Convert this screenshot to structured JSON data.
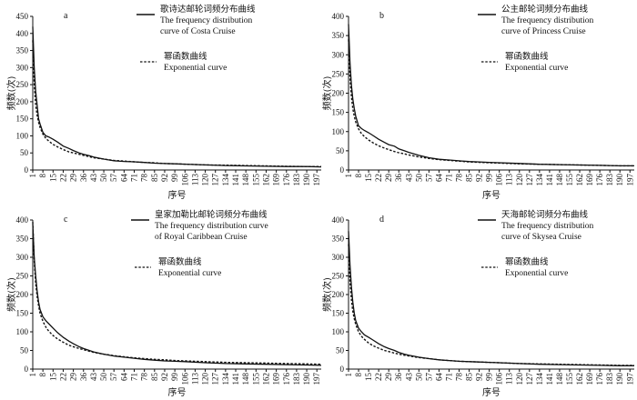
{
  "chart_data": [
    {
      "type": "line",
      "panel": "a",
      "xlabel": "序号",
      "ylabel": "频数(次)",
      "ylim": [
        0,
        450
      ],
      "yticks": [
        0,
        50,
        100,
        150,
        200,
        250,
        300,
        350,
        400,
        450
      ],
      "xticks": [
        1,
        8,
        15,
        22,
        29,
        36,
        43,
        50,
        57,
        64,
        71,
        78,
        85,
        92,
        99,
        106,
        113,
        120,
        127,
        134,
        141,
        148,
        155,
        162,
        169,
        176,
        183,
        190,
        197
      ],
      "xlim": [
        1,
        200
      ],
      "legend_position": "top-right",
      "series": [
        {
          "name": "歌诗达邮轮词频分布曲线 The frequency distribution curve of Costa Cruise",
          "style": "solid",
          "x": [
            1,
            2,
            3,
            4,
            5,
            6,
            8,
            10,
            12,
            15,
            18,
            22,
            26,
            29,
            33,
            36,
            40,
            43,
            50,
            57,
            64,
            71,
            78,
            85,
            92,
            99,
            106,
            120,
            134,
            148,
            162,
            176,
            190,
            200
          ],
          "y": [
            420,
            300,
            230,
            190,
            150,
            135,
            110,
            100,
            97,
            90,
            82,
            70,
            63,
            57,
            50,
            46,
            42,
            38,
            32,
            27,
            25,
            24,
            22,
            20,
            19,
            18,
            17,
            15,
            13,
            12,
            11,
            10,
            10,
            9
          ]
        },
        {
          "name": "幂函数曲线 Exponential curve",
          "style": "dashed",
          "x": [
            1,
            2,
            3,
            4,
            5,
            6,
            8,
            10,
            12,
            15,
            18,
            22,
            26,
            29,
            33,
            36,
            40,
            43,
            50,
            57,
            64,
            71,
            78,
            85,
            92,
            99,
            106,
            120,
            134,
            148,
            162,
            176,
            190,
            200
          ],
          "y": [
            380,
            250,
            190,
            160,
            140,
            125,
            105,
            93,
            85,
            75,
            68,
            60,
            53,
            50,
            46,
            43,
            39,
            36,
            32,
            28,
            26,
            24,
            22,
            21,
            19,
            18,
            17,
            15,
            14,
            13,
            12,
            11,
            10,
            10
          ]
        }
      ]
    },
    {
      "type": "line",
      "panel": "b",
      "xlabel": "序号",
      "ylabel": "频数(次)",
      "ylim": [
        0,
        400
      ],
      "yticks": [
        0,
        50,
        100,
        150,
        200,
        250,
        300,
        350,
        400
      ],
      "xticks": [
        1,
        8,
        15,
        22,
        29,
        36,
        43,
        50,
        57,
        64,
        71,
        78,
        85,
        92,
        99,
        106,
        113,
        120,
        127,
        134,
        141,
        148,
        155,
        162,
        169,
        176,
        183,
        190,
        197
      ],
      "xlim": [
        1,
        200
      ],
      "legend_position": "top-right",
      "series": [
        {
          "name": "公主邮轮词频分布曲线 The frequency distribution curve of Princess Cruise",
          "style": "solid",
          "x": [
            1,
            2,
            3,
            4,
            5,
            6,
            8,
            10,
            12,
            15,
            18,
            22,
            26,
            29,
            33,
            36,
            40,
            43,
            50,
            57,
            64,
            71,
            78,
            85,
            92,
            99,
            106,
            120,
            134,
            148,
            162,
            176,
            190,
            200
          ],
          "y": [
            380,
            280,
            220,
            185,
            160,
            140,
            115,
            108,
            103,
            97,
            90,
            80,
            72,
            66,
            62,
            55,
            50,
            46,
            38,
            32,
            28,
            26,
            24,
            22,
            21,
            20,
            19,
            17,
            15,
            14,
            13,
            12,
            11,
            11
          ]
        },
        {
          "name": "幂函数曲线 Exponential curve",
          "style": "dashed",
          "x": [
            1,
            2,
            3,
            4,
            5,
            6,
            8,
            10,
            12,
            15,
            18,
            22,
            26,
            29,
            33,
            36,
            40,
            43,
            50,
            57,
            64,
            71,
            78,
            85,
            92,
            99,
            106,
            120,
            134,
            148,
            162,
            176,
            190,
            200
          ],
          "y": [
            340,
            240,
            190,
            160,
            140,
            125,
            107,
            95,
            87,
            78,
            71,
            63,
            57,
            53,
            48,
            45,
            42,
            39,
            34,
            30,
            27,
            25,
            23,
            21,
            20,
            19,
            18,
            16,
            15,
            14,
            13,
            12,
            11,
            11
          ]
        }
      ]
    },
    {
      "type": "line",
      "panel": "c",
      "xlabel": "序号",
      "ylabel": "频数(次)",
      "ylim": [
        0,
        400
      ],
      "yticks": [
        0,
        50,
        100,
        150,
        200,
        250,
        300,
        350,
        400
      ],
      "xticks": [
        1,
        8,
        15,
        22,
        29,
        36,
        43,
        50,
        57,
        64,
        71,
        78,
        85,
        92,
        99,
        106,
        113,
        120,
        127,
        134,
        141,
        148,
        155,
        162,
        169,
        176,
        183,
        190,
        197
      ],
      "xlim": [
        1,
        200
      ],
      "legend_position": "top-right",
      "series": [
        {
          "name": "皇家加勒比邮轮词频分布曲线 The frequency distribution curve of Royal Caribbean Cruise",
          "style": "solid",
          "x": [
            1,
            2,
            3,
            4,
            5,
            6,
            8,
            10,
            12,
            15,
            18,
            22,
            26,
            29,
            33,
            36,
            40,
            43,
            50,
            57,
            64,
            71,
            78,
            85,
            92,
            99,
            106,
            120,
            134,
            148,
            162,
            176,
            190,
            200
          ],
          "y": [
            390,
            300,
            250,
            210,
            180,
            160,
            140,
            130,
            122,
            110,
            98,
            85,
            75,
            68,
            60,
            55,
            50,
            46,
            40,
            35,
            32,
            29,
            26,
            24,
            22,
            21,
            20,
            17,
            15,
            14,
            13,
            12,
            11,
            10
          ]
        },
        {
          "name": "幂函数曲线 Exponential curve",
          "style": "dashed",
          "x": [
            1,
            2,
            3,
            4,
            5,
            6,
            8,
            10,
            12,
            15,
            18,
            22,
            26,
            29,
            33,
            36,
            40,
            43,
            50,
            57,
            64,
            71,
            78,
            85,
            92,
            99,
            106,
            120,
            134,
            148,
            162,
            176,
            190,
            200
          ],
          "y": [
            395,
            290,
            230,
            195,
            170,
            150,
            128,
            113,
            102,
            90,
            81,
            72,
            64,
            60,
            55,
            52,
            48,
            45,
            40,
            36,
            33,
            30,
            28,
            26,
            25,
            23,
            22,
            20,
            18,
            17,
            16,
            15,
            14,
            13
          ]
        }
      ]
    },
    {
      "type": "line",
      "panel": "d",
      "xlabel": "序号",
      "ylabel": "频数(次)",
      "ylim": [
        0,
        400
      ],
      "yticks": [
        0,
        50,
        100,
        150,
        200,
        250,
        300,
        350,
        400
      ],
      "xticks": [
        1,
        8,
        15,
        22,
        29,
        36,
        43,
        50,
        57,
        64,
        71,
        78,
        85,
        92,
        99,
        106,
        113,
        120,
        127,
        134,
        141,
        148,
        155,
        162,
        169,
        176,
        183,
        190,
        197
      ],
      "xlim": [
        1,
        200
      ],
      "legend_position": "top-right",
      "series": [
        {
          "name": "天海邮轮词频分布曲线 The frequency distribution curve of Skysea Cruise",
          "style": "solid",
          "x": [
            1,
            2,
            3,
            4,
            5,
            6,
            8,
            10,
            12,
            15,
            18,
            22,
            26,
            29,
            33,
            36,
            40,
            43,
            50,
            57,
            64,
            71,
            78,
            85,
            92,
            99,
            106,
            120,
            134,
            148,
            162,
            176,
            190,
            200
          ],
          "y": [
            370,
            280,
            220,
            180,
            150,
            130,
            110,
            100,
            92,
            85,
            78,
            68,
            60,
            55,
            50,
            45,
            40,
            37,
            32,
            28,
            25,
            23,
            21,
            20,
            19,
            18,
            17,
            15,
            13,
            12,
            11,
            10,
            9,
            9
          ]
        },
        {
          "name": "幂函数曲线 Exponential curve",
          "style": "dashed",
          "x": [
            1,
            2,
            3,
            4,
            5,
            6,
            8,
            10,
            12,
            15,
            18,
            22,
            26,
            29,
            33,
            36,
            40,
            43,
            50,
            57,
            64,
            71,
            78,
            85,
            92,
            99,
            106,
            120,
            134,
            148,
            162,
            176,
            190,
            200
          ],
          "y": [
            335,
            235,
            185,
            155,
            135,
            120,
            100,
            88,
            80,
            70,
            63,
            56,
            50,
            47,
            43,
            40,
            37,
            35,
            31,
            28,
            25,
            23,
            21,
            20,
            19,
            18,
            17,
            15,
            14,
            13,
            12,
            11,
            10,
            10
          ]
        }
      ]
    }
  ],
  "legends": [
    {
      "series_cn": "歌诗达邮轮词频分布曲线",
      "series_en_1": "The frequency distribution",
      "series_en_2": "curve of Costa Cruise",
      "series_en_3": "",
      "fit_cn": "幂函数曲线",
      "fit_en": "Exponential curve"
    },
    {
      "series_cn": "公主邮轮词频分布曲线",
      "series_en_1": "The frequency distribution",
      "series_en_2": "curve of  Princess Cruise",
      "series_en_3": "",
      "fit_cn": "幂函数曲线",
      "fit_en": "Exponential curve"
    },
    {
      "series_cn": "皇家加勒比邮轮词频分布曲线",
      "series_en_1": "The frequency distribution curve",
      "series_en_2": "of Royal Caribbean Cruise",
      "series_en_3": "",
      "fit_cn": "幂函数曲线",
      "fit_en": "Exponential curve"
    },
    {
      "series_cn": "天海邮轮词频分布曲线",
      "series_en_1": "The frequency distribution",
      "series_en_2": "curve of Skysea Cruise",
      "series_en_3": "",
      "fit_cn": "幂函数曲线",
      "fit_en": "Exponential curve"
    }
  ],
  "colors": {
    "line": "#111111",
    "axis": "#111111",
    "background": "#ffffff"
  }
}
